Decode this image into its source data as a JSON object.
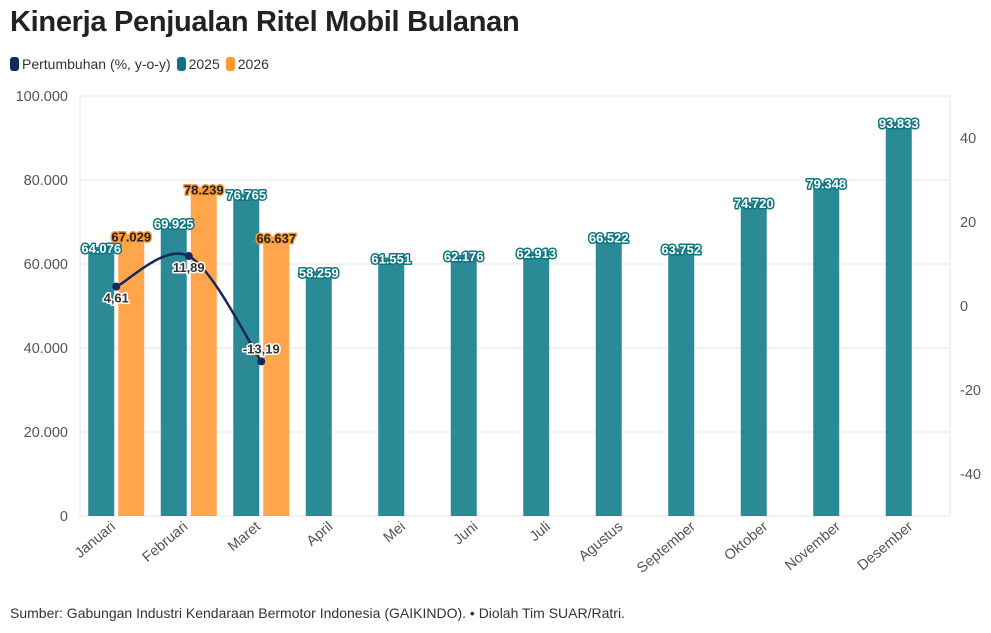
{
  "title": "Kinerja Penjualan Ritel Mobil Bulanan",
  "source": "Sumber: Gabungan Industri Kendaraan Bermotor Indonesia (GAIKINDO). • Diolah Tim SUAR/Ratri.",
  "chart_data": {
    "type": "bar",
    "title": "Kinerja Penjualan Ritel Mobil Bulanan",
    "categories": [
      "Januari",
      "Februari",
      "Maret",
      "April",
      "Mei",
      "Juni",
      "Juli",
      "Agustus",
      "September",
      "Oktober",
      "November",
      "Desember"
    ],
    "series": [
      {
        "name": "2025",
        "type": "bar",
        "axis": "left",
        "color": "#2a8a96",
        "values": [
          64076,
          69925,
          76765,
          58259,
          61551,
          62176,
          62913,
          66522,
          63752,
          74720,
          79348,
          93833
        ],
        "labels": [
          "64.076",
          "69.925",
          "76.765",
          "58.259",
          "61.551",
          "62.176",
          "62.913",
          "66.522",
          "63.752",
          "74.720",
          "79.348",
          "93.833"
        ]
      },
      {
        "name": "2026",
        "type": "bar",
        "axis": "left",
        "color": "#ffa64d",
        "values": [
          67029,
          78239,
          66637,
          null,
          null,
          null,
          null,
          null,
          null,
          null,
          null,
          null
        ],
        "labels": [
          "67.029",
          "78.239",
          "66.637"
        ]
      },
      {
        "name": "Pertumbuhan (%, y-o-y)",
        "type": "line",
        "axis": "right",
        "color": "#14285a",
        "values": [
          4.61,
          11.89,
          -13.19,
          null,
          null,
          null,
          null,
          null,
          null,
          null,
          null,
          null
        ],
        "labels": [
          "4,61",
          "11,89",
          "-13,19"
        ]
      }
    ],
    "y_left": {
      "ylim": [
        0,
        100000
      ],
      "ticks": [
        "0",
        "20.000",
        "40.000",
        "60.000",
        "80.000",
        "100.000"
      ],
      "tick_values": [
        0,
        20000,
        40000,
        60000,
        80000,
        100000
      ]
    },
    "y_right": {
      "ylim": [
        -50,
        50
      ],
      "ticks": [
        "-40",
        "-20",
        "0",
        "20",
        "40"
      ],
      "tick_values": [
        -40,
        -20,
        0,
        20,
        40
      ]
    },
    "grid": true,
    "legend": "top-left"
  }
}
